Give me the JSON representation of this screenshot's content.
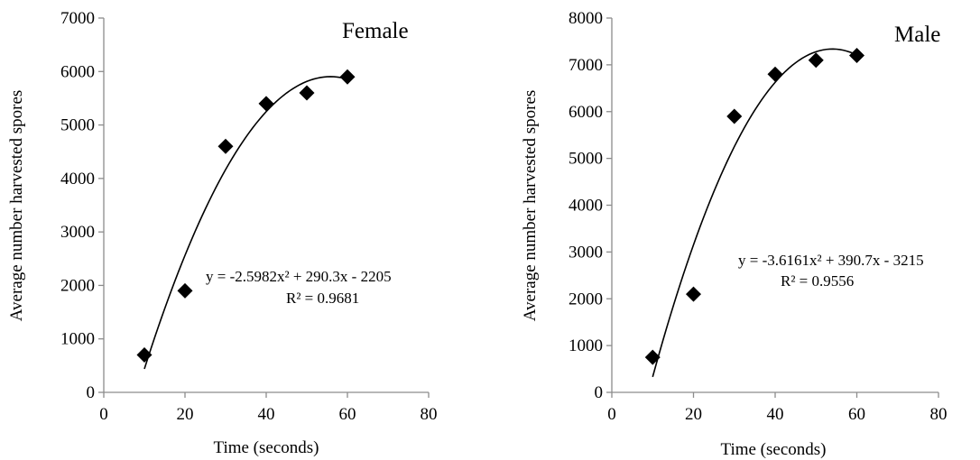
{
  "chart_data": [
    {
      "type": "scatter",
      "title": "Female",
      "xlabel": "Time (seconds)",
      "ylabel": "Average number harvested spores",
      "xlim": [
        0,
        80
      ],
      "ylim": [
        0,
        7000
      ],
      "xticks": [
        "0",
        "20",
        "40",
        "60",
        "80"
      ],
      "yticks": [
        "0",
        "1000",
        "2000",
        "3000",
        "4000",
        "5000",
        "6000",
        "7000"
      ],
      "grid": false,
      "marker": "diamond",
      "color": "#000000",
      "x": [
        10,
        20,
        30,
        40,
        50,
        60
      ],
      "y": [
        700,
        1900,
        4600,
        5400,
        5600,
        5900
      ],
      "trendline": {
        "type": "polynomial",
        "order": 2,
        "coefficients": {
          "a": -2.5982,
          "b": 290.3,
          "c": -2205
        },
        "equation": "y = -2.5982x² + 290.3x - 2205",
        "r2": "R² = 0.9681"
      }
    },
    {
      "type": "scatter",
      "title": "Male",
      "xlabel": "Time (seconds)",
      "ylabel": "Average number harvested spores",
      "xlim": [
        0,
        80
      ],
      "ylim": [
        0,
        8000
      ],
      "xticks": [
        "0",
        "20",
        "40",
        "60",
        "80"
      ],
      "yticks": [
        "0",
        "1000",
        "2000",
        "3000",
        "4000",
        "5000",
        "6000",
        "7000",
        "8000"
      ],
      "grid": false,
      "marker": "diamond",
      "color": "#000000",
      "x": [
        10,
        20,
        30,
        40,
        50,
        60
      ],
      "y": [
        750,
        2100,
        5900,
        6800,
        7100,
        7200
      ],
      "trendline": {
        "type": "polynomial",
        "order": 2,
        "coefficients": {
          "a": -3.6161,
          "b": 390.7,
          "c": -3215
        },
        "equation": "y = -3.6161x² + 390.7x - 3215",
        "r2": "R² = 0.9556"
      }
    }
  ]
}
